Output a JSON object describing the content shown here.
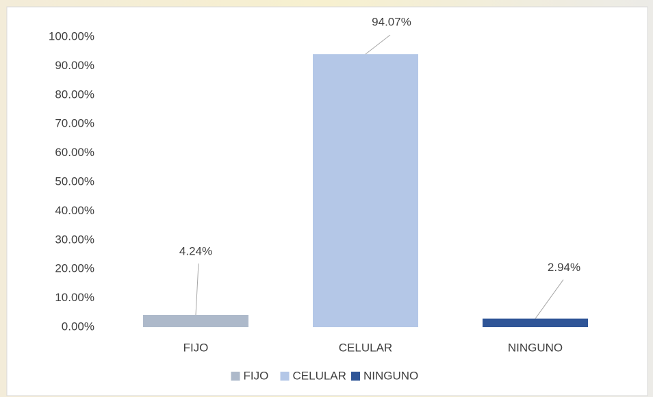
{
  "chart_data": {
    "type": "bar",
    "categories": [
      "FIJO",
      "CELULAR",
      "NINGUNO"
    ],
    "values": [
      4.24,
      94.07,
      2.94
    ],
    "value_labels": [
      "4.24%",
      "94.07%",
      "2.94%"
    ],
    "colors": [
      "#adb9ca",
      "#b4c7e7",
      "#2f5597"
    ],
    "ylim": [
      0,
      100
    ],
    "yticks": [
      {
        "value": 0,
        "label": "0.00%"
      },
      {
        "value": 10,
        "label": "10.00%"
      },
      {
        "value": 20,
        "label": "20.00%"
      },
      {
        "value": 30,
        "label": "30.00%"
      },
      {
        "value": 40,
        "label": "40.00%"
      },
      {
        "value": 50,
        "label": "50.00%"
      },
      {
        "value": 60,
        "label": "60.00%"
      },
      {
        "value": 70,
        "label": "70.00%"
      },
      {
        "value": 80,
        "label": "80.00%"
      },
      {
        "value": 90,
        "label": "90.00%"
      },
      {
        "value": 100,
        "label": "100.00%"
      }
    ],
    "legend": "bottom"
  }
}
